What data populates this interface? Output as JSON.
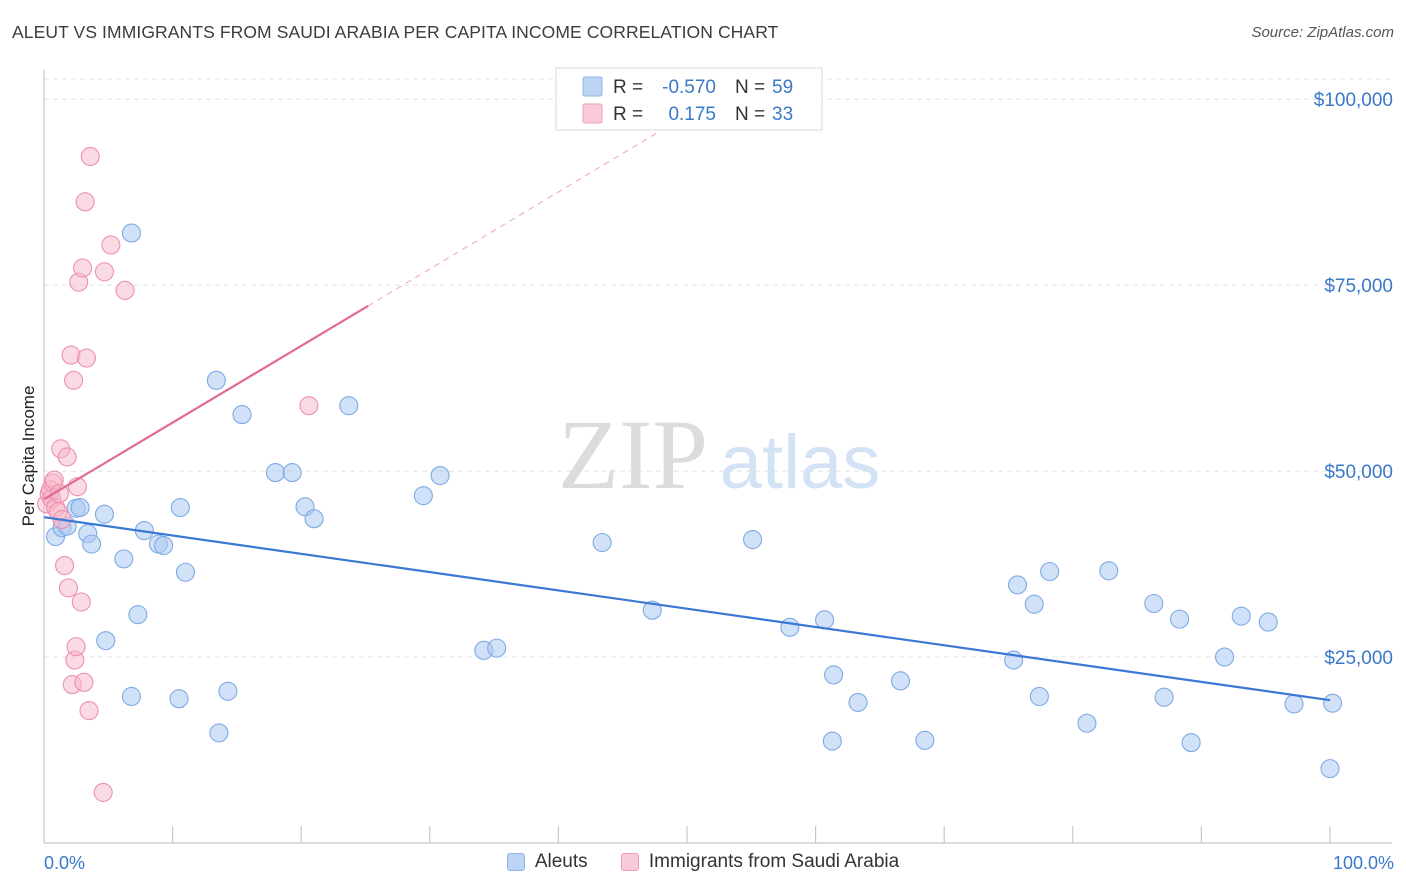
{
  "header": {
    "title": "ALEUT VS IMMIGRANTS FROM SAUDI ARABIA PER CAPITA INCOME CORRELATION CHART",
    "source": "Source: ZipAtlas.com"
  },
  "watermark": {
    "zip": "ZIP",
    "atlas": "atlas"
  },
  "legend_top": [
    {
      "r_label": "R = ",
      "r_value": "-0.570",
      "n_label": "N = ",
      "n_value": "59",
      "color": "#a9c8f2"
    },
    {
      "r_label": "R = ",
      "r_value": "0.175",
      "n_label": "N = ",
      "n_value": "33",
      "color": "#f6b5c8"
    }
  ],
  "legend_bottom": [
    {
      "label": "Aleuts",
      "color": "#a9c8f2"
    },
    {
      "label": "Immigrants from Saudi Arabia",
      "color": "#f6b5c8"
    }
  ],
  "chart_data": {
    "type": "scatter",
    "ylabel": "Per Capita Income",
    "xlabel": "",
    "xlim": [
      0,
      100
    ],
    "ylim": [
      0,
      105000
    ],
    "x_tick_labels": [
      "0.0%",
      "100.0%"
    ],
    "y_ticks": [
      {
        "value": 25000,
        "label": "$25,000"
      },
      {
        "value": 50000,
        "label": "$50,000"
      },
      {
        "value": 75000,
        "label": "$75,000"
      },
      {
        "value": 100000,
        "label": "$100,000"
      }
    ],
    "colors": {
      "aleuts": "#3a78d4",
      "saudi": "#e36a92"
    },
    "series": [
      {
        "name": "Aleuts",
        "points": [
          [
            0.9,
            41200
          ],
          [
            1.4,
            42400
          ],
          [
            1.8,
            42600
          ],
          [
            2.5,
            45000
          ],
          [
            2.8,
            45100
          ],
          [
            4.7,
            44200
          ],
          [
            3.4,
            41600
          ],
          [
            3.7,
            40200
          ],
          [
            6.2,
            38200
          ],
          [
            4.8,
            27200
          ],
          [
            6.8,
            82000
          ],
          [
            7.3,
            30700
          ],
          [
            6.8,
            19700
          ],
          [
            7.8,
            42000
          ],
          [
            8.9,
            40200
          ],
          [
            9.3,
            40000
          ],
          [
            10.6,
            45100
          ],
          [
            11.0,
            36400
          ],
          [
            10.5,
            19400
          ],
          [
            13.4,
            62200
          ],
          [
            13.6,
            14800
          ],
          [
            14.3,
            20400
          ],
          [
            15.4,
            57600
          ],
          [
            18.0,
            49800
          ],
          [
            19.3,
            49800
          ],
          [
            20.3,
            45200
          ],
          [
            21.0,
            43600
          ],
          [
            23.7,
            58800
          ],
          [
            29.5,
            46700
          ],
          [
            30.8,
            49400
          ],
          [
            34.2,
            25900
          ],
          [
            35.2,
            26200
          ],
          [
            43.4,
            40400
          ],
          [
            47.3,
            31300
          ],
          [
            55.1,
            40800
          ],
          [
            58.0,
            29000
          ],
          [
            61.4,
            22600
          ],
          [
            60.7,
            30000
          ],
          [
            63.3,
            18900
          ],
          [
            61.3,
            13700
          ],
          [
            66.6,
            21800
          ],
          [
            68.5,
            13800
          ],
          [
            75.4,
            24600
          ],
          [
            75.7,
            34700
          ],
          [
            77.0,
            32100
          ],
          [
            77.4,
            19700
          ],
          [
            78.2,
            36500
          ],
          [
            82.8,
            36600
          ],
          [
            81.1,
            16100
          ],
          [
            86.3,
            32200
          ],
          [
            87.1,
            19600
          ],
          [
            88.3,
            30100
          ],
          [
            89.2,
            13500
          ],
          [
            91.8,
            25000
          ],
          [
            93.1,
            30500
          ],
          [
            95.2,
            29700
          ],
          [
            97.2,
            18700
          ],
          [
            100.0,
            10000
          ],
          [
            100.2,
            18800
          ]
        ]
      },
      {
        "name": "Immigrants from Saudi Arabia",
        "points": [
          [
            0.2,
            45600
          ],
          [
            0.4,
            46900
          ],
          [
            0.5,
            47500
          ],
          [
            0.6,
            46300
          ],
          [
            0.7,
            48400
          ],
          [
            0.8,
            48800
          ],
          [
            0.9,
            45100
          ],
          [
            1.1,
            44500
          ],
          [
            1.2,
            47000
          ],
          [
            1.3,
            53000
          ],
          [
            1.4,
            43500
          ],
          [
            1.6,
            37300
          ],
          [
            1.8,
            51900
          ],
          [
            1.9,
            34300
          ],
          [
            2.1,
            65600
          ],
          [
            2.2,
            21300
          ],
          [
            2.3,
            62200
          ],
          [
            2.4,
            24600
          ],
          [
            2.5,
            26400
          ],
          [
            2.6,
            47900
          ],
          [
            2.7,
            75400
          ],
          [
            2.9,
            32400
          ],
          [
            3.0,
            77300
          ],
          [
            3.1,
            21600
          ],
          [
            3.2,
            86200
          ],
          [
            3.3,
            65200
          ],
          [
            3.5,
            17800
          ],
          [
            3.6,
            92300
          ],
          [
            4.6,
            6800
          ],
          [
            4.7,
            76800
          ],
          [
            5.2,
            80400
          ],
          [
            6.3,
            74300
          ],
          [
            20.6,
            58800
          ]
        ]
      }
    ],
    "trend_lines": [
      {
        "name": "Aleuts",
        "x": [
          0.0,
          100.0
        ],
        "y": [
          43800,
          19200
        ],
        "style": "solid"
      },
      {
        "name": "Immigrants from Saudi Arabia",
        "x": [
          0.0,
          25.2
        ],
        "y": [
          46200,
          72200
        ],
        "style": "solid"
      },
      {
        "name": "Immigrants from Saudi Arabia",
        "x": [
          25.2,
          50.4
        ],
        "y": [
          72200,
          98300
        ],
        "style": "dashed"
      }
    ]
  }
}
